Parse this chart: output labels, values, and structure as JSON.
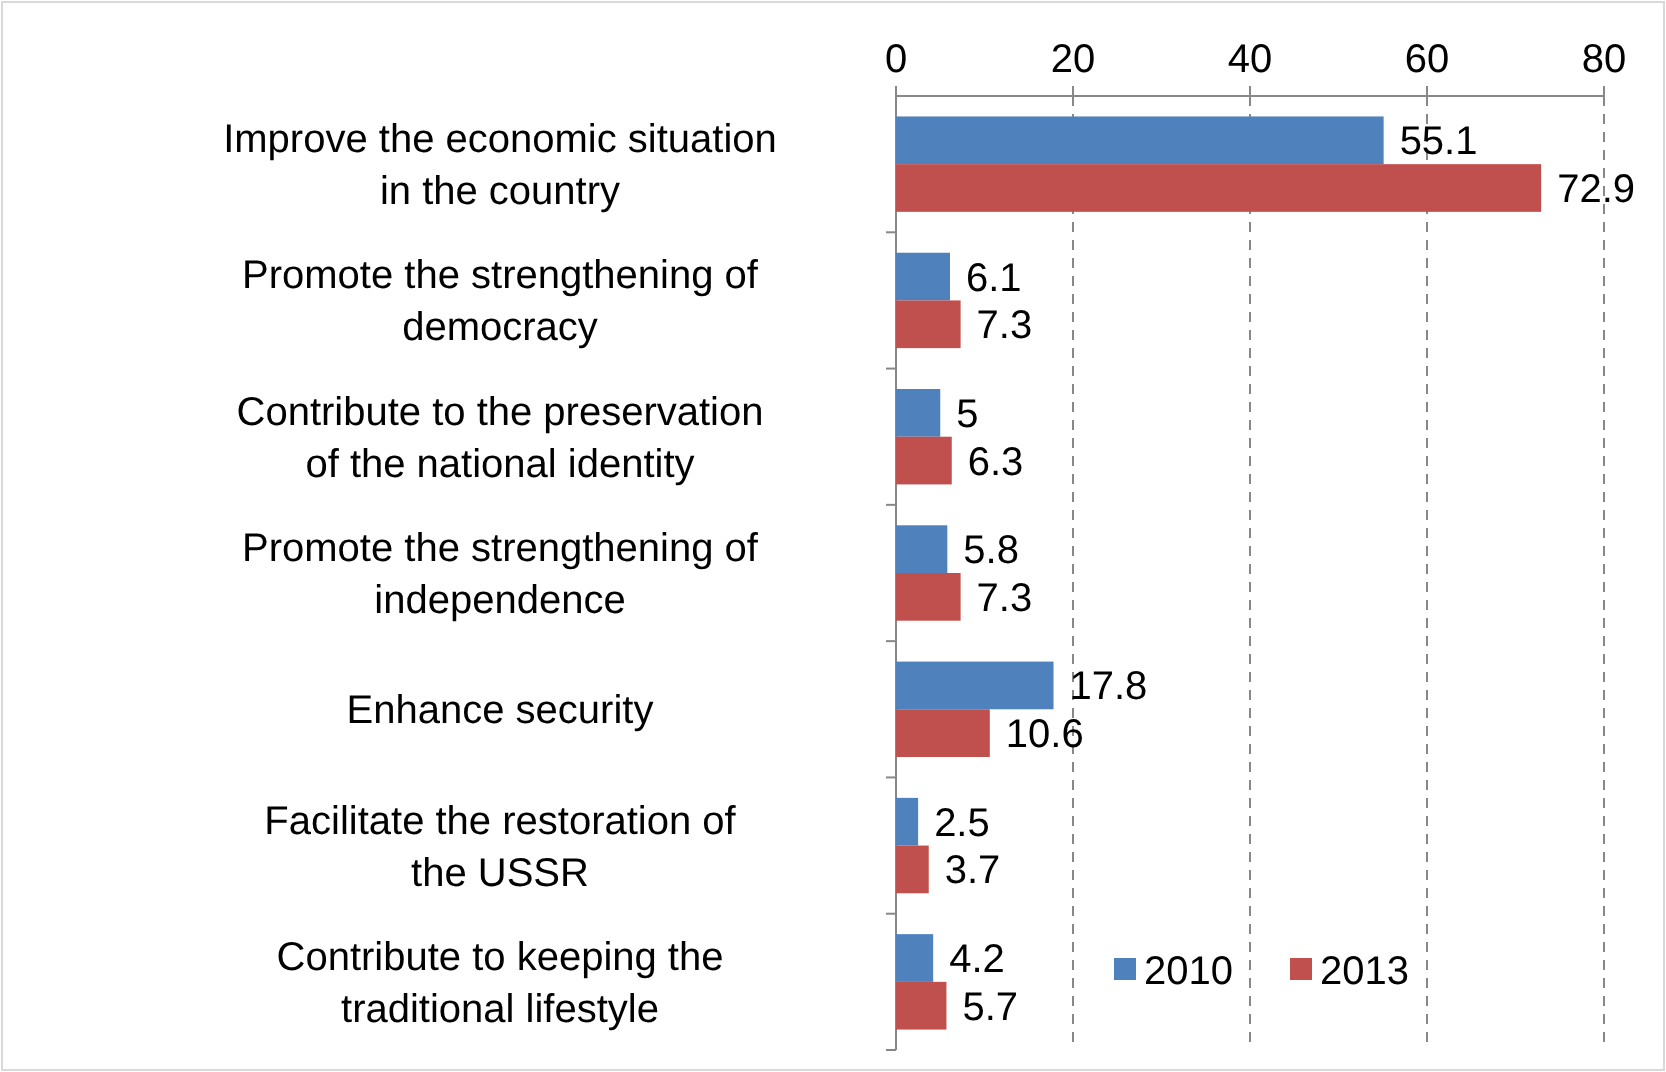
{
  "chart_data": {
    "type": "bar",
    "orientation": "horizontal",
    "categories": [
      "Improve the economic situation in the country",
      "Promote the strengthening of democracy",
      "Contribute to the preservation of the national identity",
      "Promote the strengthening of independence",
      "Enhance security",
      "Facilitate the restoration of the USSR",
      "Contribute to keeping the traditional lifestyle"
    ],
    "series": [
      {
        "name": "2010",
        "color": "#4f81bd",
        "values": [
          55.1,
          6.1,
          5,
          5.8,
          17.8,
          2.5,
          4.2
        ]
      },
      {
        "name": "2013",
        "color": "#c0504d",
        "values": [
          72.9,
          7.3,
          6.3,
          7.3,
          10.6,
          3.7,
          5.7
        ]
      }
    ],
    "xlim": [
      0,
      80
    ],
    "xticks": [
      0,
      20,
      40,
      60,
      80
    ],
    "grid": "x",
    "data_labels": true,
    "legend": "bottom right"
  }
}
